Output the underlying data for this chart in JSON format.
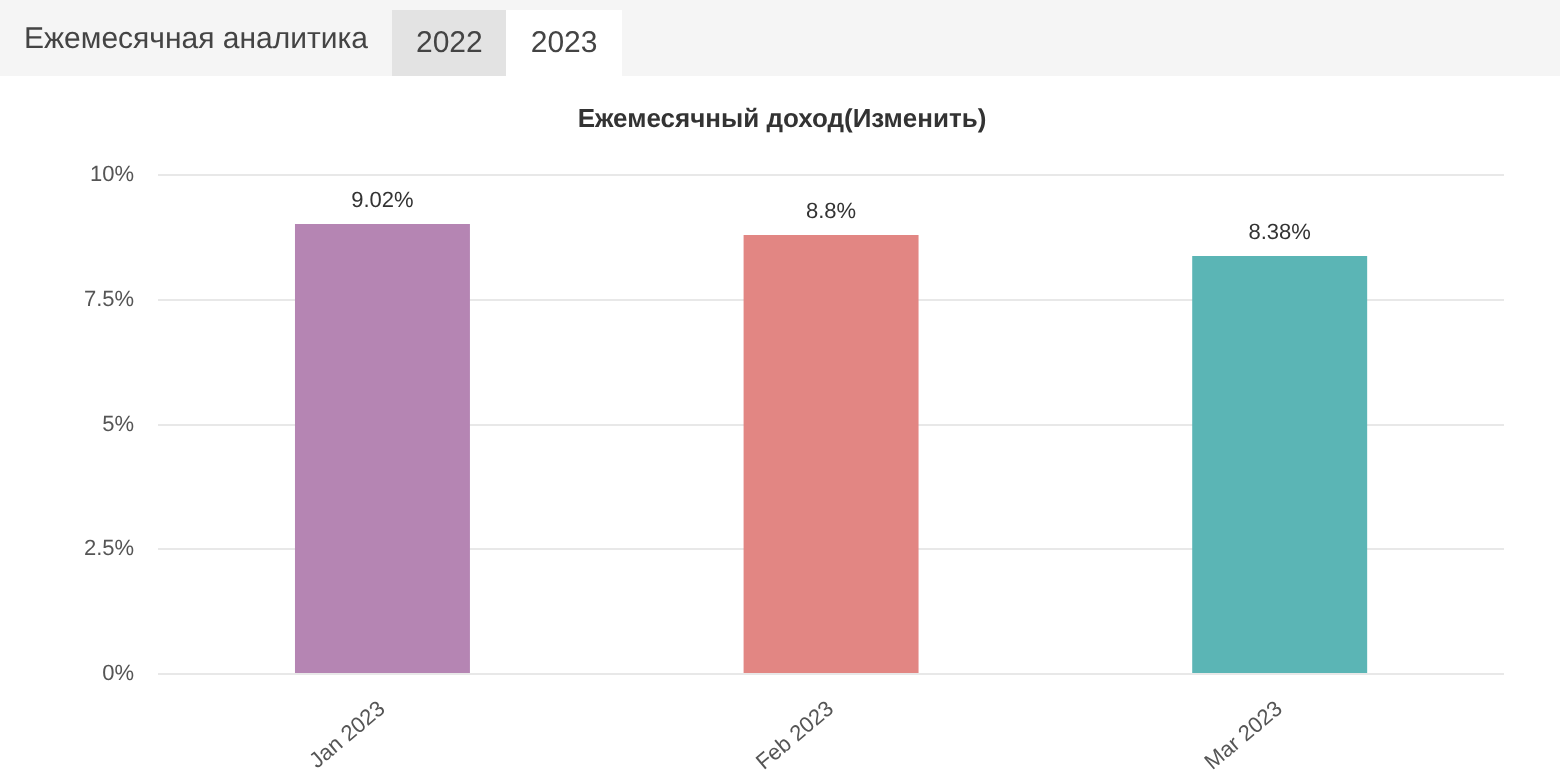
{
  "chart_data": {
    "type": "bar",
    "title": "Ежемесячный доход(Изменить)",
    "annotations": [
      "Ежемесячная аналитика",
      "2022",
      "2023"
    ],
    "categories": [
      "Jan 2023",
      "Feb 2023",
      "Mar 2023"
    ],
    "values": [
      9.02,
      8.8,
      8.38
    ],
    "colors": [
      "#b585b3",
      "#e28683",
      "#5bb5b5"
    ],
    "value_labels": [
      "9.02%",
      "8.8%",
      "8.38%"
    ],
    "ylim": [
      0,
      10
    ],
    "yticks": [
      {
        "value": 0,
        "label": "0%"
      },
      {
        "value": 2.5,
        "label": "2.5%"
      },
      {
        "value": 5,
        "label": "5%"
      },
      {
        "value": 7.5,
        "label": "7.5%"
      },
      {
        "value": 10,
        "label": "10%"
      }
    ],
    "grid": "y"
  }
}
